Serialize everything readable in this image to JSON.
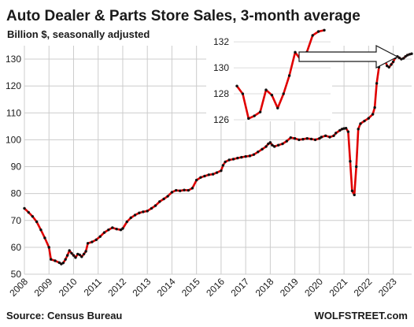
{
  "chart_data": [
    {
      "type": "line",
      "title": "Auto Dealer & Parts Store Sales, 3-month average",
      "subtitle": "Billion $, seasonally adjusted",
      "ylim": [
        50,
        135
      ],
      "yticks": [
        50,
        60,
        70,
        80,
        90,
        100,
        110,
        120,
        130
      ],
      "xlim": [
        2008,
        2023.75
      ],
      "xticks": [
        2008,
        2009,
        2010,
        2011,
        2012,
        2013,
        2014,
        2015,
        2016,
        2017,
        2018,
        2019,
        2020,
        2021,
        2022,
        2023
      ],
      "grid": true,
      "series": [
        {
          "color": "#e00000",
          "marker_color": "#111111",
          "points": [
            [
              2008.0,
              74.5
            ],
            [
              2008.17,
              73.0
            ],
            [
              2008.33,
              71.5
            ],
            [
              2008.5,
              69.5
            ],
            [
              2008.67,
              66.5
            ],
            [
              2008.83,
              63.5
            ],
            [
              2009.0,
              60.0
            ],
            [
              2009.08,
              55.5
            ],
            [
              2009.25,
              55.0
            ],
            [
              2009.42,
              54.3
            ],
            [
              2009.5,
              53.8
            ],
            [
              2009.58,
              54.2
            ],
            [
              2009.67,
              55.5
            ],
            [
              2009.75,
              57.0
            ],
            [
              2009.83,
              58.8
            ],
            [
              2009.92,
              57.8
            ],
            [
              2010.0,
              57.0
            ],
            [
              2010.08,
              56.2
            ],
            [
              2010.17,
              57.5
            ],
            [
              2010.25,
              57.2
            ],
            [
              2010.33,
              56.5
            ],
            [
              2010.42,
              57.5
            ],
            [
              2010.5,
              58.5
            ],
            [
              2010.58,
              61.5
            ],
            [
              2010.75,
              62.0
            ],
            [
              2010.92,
              62.8
            ],
            [
              2011.08,
              64.0
            ],
            [
              2011.25,
              65.5
            ],
            [
              2011.42,
              66.5
            ],
            [
              2011.58,
              67.3
            ],
            [
              2011.75,
              66.8
            ],
            [
              2011.92,
              66.5
            ],
            [
              2012.0,
              67.0
            ],
            [
              2012.17,
              69.5
            ],
            [
              2012.33,
              71.0
            ],
            [
              2012.5,
              72.0
            ],
            [
              2012.67,
              72.8
            ],
            [
              2012.83,
              73.2
            ],
            [
              2013.0,
              73.5
            ],
            [
              2013.17,
              74.5
            ],
            [
              2013.33,
              75.5
            ],
            [
              2013.5,
              77.0
            ],
            [
              2013.67,
              78.0
            ],
            [
              2013.83,
              79.0
            ],
            [
              2014.0,
              80.5
            ],
            [
              2014.17,
              81.2
            ],
            [
              2014.33,
              81.0
            ],
            [
              2014.5,
              81.3
            ],
            [
              2014.67,
              81.2
            ],
            [
              2014.83,
              82.0
            ],
            [
              2015.0,
              85.0
            ],
            [
              2015.17,
              86.0
            ],
            [
              2015.33,
              86.5
            ],
            [
              2015.5,
              87.0
            ],
            [
              2015.67,
              87.2
            ],
            [
              2015.83,
              87.8
            ],
            [
              2016.0,
              88.5
            ],
            [
              2016.08,
              90.5
            ],
            [
              2016.17,
              91.8
            ],
            [
              2016.33,
              92.5
            ],
            [
              2016.5,
              92.8
            ],
            [
              2016.67,
              93.2
            ],
            [
              2016.83,
              93.5
            ],
            [
              2017.0,
              93.8
            ],
            [
              2017.17,
              94.0
            ],
            [
              2017.33,
              94.5
            ],
            [
              2017.5,
              95.5
            ],
            [
              2017.67,
              96.5
            ],
            [
              2017.83,
              97.5
            ],
            [
              2017.92,
              98.5
            ],
            [
              2018.0,
              99.0
            ],
            [
              2018.08,
              98.0
            ],
            [
              2018.17,
              97.5
            ],
            [
              2018.33,
              98.0
            ],
            [
              2018.5,
              98.5
            ],
            [
              2018.67,
              99.5
            ],
            [
              2018.83,
              100.8
            ],
            [
              2019.0,
              100.5
            ],
            [
              2019.17,
              100.0
            ],
            [
              2019.33,
              100.2
            ],
            [
              2019.5,
              100.5
            ],
            [
              2019.67,
              100.3
            ],
            [
              2019.83,
              100.0
            ],
            [
              2020.0,
              100.5
            ],
            [
              2020.08,
              101.0
            ],
            [
              2020.25,
              101.5
            ],
            [
              2020.42,
              101.0
            ],
            [
              2020.58,
              101.5
            ],
            [
              2020.67,
              102.5
            ],
            [
              2020.83,
              103.5
            ],
            [
              2020.92,
              104.0
            ],
            [
              2021.0,
              104.2
            ],
            [
              2021.08,
              104.3
            ],
            [
              2021.17,
              103.0
            ],
            [
              2021.25,
              92.0
            ],
            [
              2021.33,
              81.0
            ],
            [
              2021.42,
              79.5
            ],
            [
              2021.5,
              90.0
            ],
            [
              2021.58,
              104.0
            ],
            [
              2021.67,
              106.0
            ],
            [
              2021.83,
              107.0
            ],
            [
              2022.0,
              108.0
            ],
            [
              2022.17,
              109.5
            ],
            [
              2022.25,
              112.0
            ],
            [
              2022.33,
              121.0
            ],
            [
              2022.42,
              127.0
            ],
            [
              2022.5,
              131.5
            ],
            [
              2022.58,
              131.0
            ],
            [
              2022.67,
              129.5
            ],
            [
              2022.75,
              127.5
            ],
            [
              2022.83,
              127.0
            ],
            [
              2022.92,
              128.0
            ],
            [
              2023.0,
              129.0
            ],
            [
              2023.08,
              130.5
            ],
            [
              2023.17,
              131.0
            ],
            [
              2023.25,
              130.5
            ],
            [
              2023.33,
              130.0
            ],
            [
              2023.42,
              130.3
            ],
            [
              2023.5,
              131.0
            ],
            [
              2023.58,
              131.5
            ],
            [
              2023.67,
              131.8
            ],
            [
              2023.75,
              132.0
            ]
          ]
        }
      ]
    },
    {
      "type": "line",
      "role": "inset",
      "ylim": [
        126,
        132.8
      ],
      "yticks": [
        126,
        128,
        130,
        132
      ],
      "series": [
        {
          "color": "#e00000",
          "marker_color": "#111111",
          "points": [
            [
              0,
              128.6
            ],
            [
              1,
              128.0
            ],
            [
              2,
              126.1
            ],
            [
              3,
              126.3
            ],
            [
              4,
              126.6
            ],
            [
              5,
              128.3
            ],
            [
              6,
              127.9
            ],
            [
              7,
              126.9
            ],
            [
              8,
              128.0
            ],
            [
              9,
              129.4
            ],
            [
              10,
              131.2
            ],
            [
              11,
              130.6
            ],
            [
              12,
              131.2
            ],
            [
              13,
              132.5
            ],
            [
              14,
              132.8
            ],
            [
              15,
              132.9
            ]
          ]
        }
      ]
    }
  ],
  "footer": {
    "source": "Source: Census Bureau",
    "brand": "WOLFSTREET.com"
  }
}
